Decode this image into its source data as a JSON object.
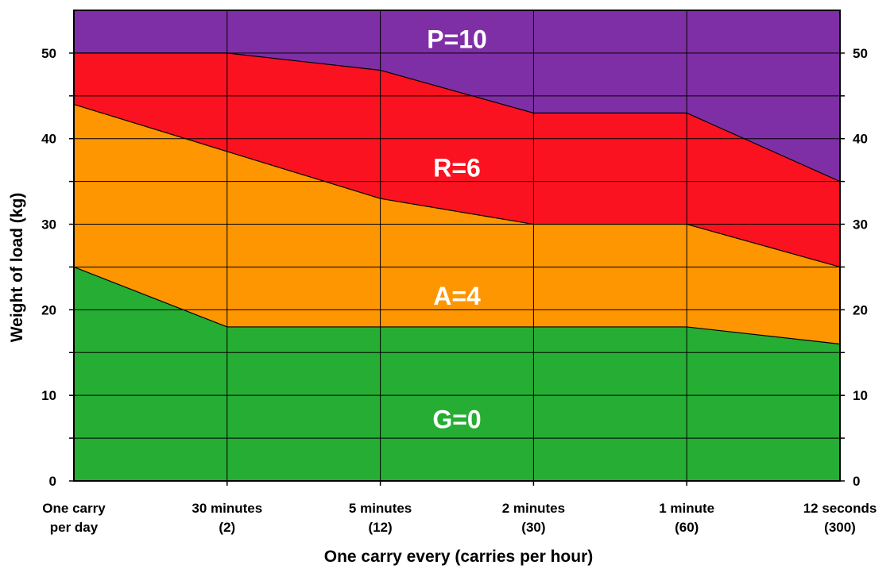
{
  "chart_data": {
    "type": "area",
    "title": "",
    "xlabel": "One carry every (carries per hour)",
    "ylabel": "Weight of load (kg)",
    "ylim": [
      0,
      55
    ],
    "y_ticks": [
      "0",
      "10",
      "20",
      "30",
      "40",
      "50"
    ],
    "y_ticks_right": [
      "0",
      "10",
      "20",
      "30",
      "40",
      "50"
    ],
    "grid": true,
    "categories": [
      {
        "line1": "One carry",
        "line2": "per day"
      },
      {
        "line1": "30 minutes",
        "line2": "(2)"
      },
      {
        "line1": "5 minutes",
        "line2": "(12)"
      },
      {
        "line1": "2 minutes",
        "line2": "(30)"
      },
      {
        "line1": "1 minute",
        "line2": "(60)"
      },
      {
        "line1": "12 seconds",
        "line2": "(300)"
      }
    ],
    "boundaries": [
      {
        "upper_zone": "A",
        "values": [
          25,
          18,
          18,
          18,
          18,
          16
        ]
      },
      {
        "upper_zone": "R",
        "values": [
          44,
          38.5,
          33,
          30,
          30,
          25
        ]
      },
      {
        "upper_zone": "P",
        "values": [
          50,
          50,
          48,
          43,
          43,
          35
        ]
      }
    ],
    "zones": [
      {
        "id": "G",
        "label": "G=0",
        "color": "#26ad33",
        "label_y": 7.2
      },
      {
        "id": "A",
        "label": "A=4",
        "color": "#fd9600",
        "label_y": 21.6
      },
      {
        "id": "R",
        "label": "R=6",
        "color": "#fa1220",
        "label_y": 36.6
      },
      {
        "id": "P",
        "label": "P=10",
        "color": "#7f2fa6",
        "label_y": 51.6
      }
    ]
  }
}
